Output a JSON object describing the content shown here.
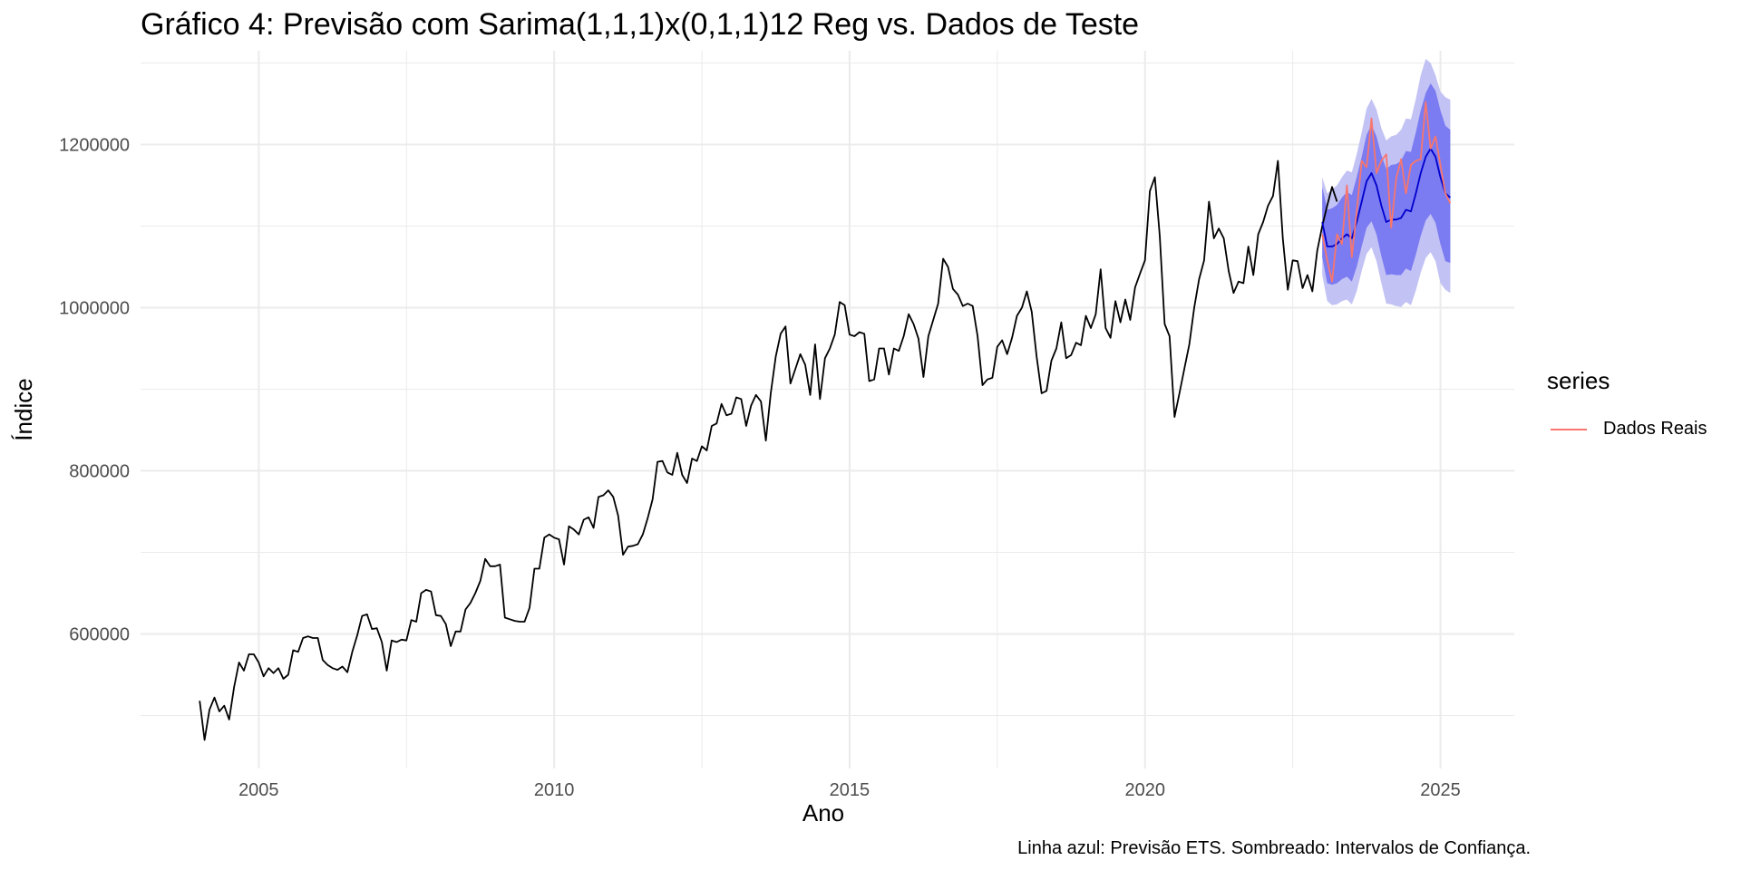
{
  "chart_data": {
    "type": "line",
    "title": "Gráfico 4: Previsão com Sarima(1,1,1)x(0,1,1)12 Reg vs. Dados de Teste",
    "xlabel": "Ano",
    "ylabel": "Índice",
    "caption": "Linha azul: Previsão ETS. Sombreado: Intervalos de Confiança.",
    "legend": {
      "title": "series",
      "placement": "right",
      "entries": [
        "Dados Reais"
      ]
    },
    "xlim": [
      2003.0,
      2026.25
    ],
    "ylim": [
      435000,
      1315000
    ],
    "x_ticks": [
      2005,
      2010,
      2015,
      2020,
      2025
    ],
    "x_tick_labels": [
      "2005",
      "2010",
      "2015",
      "2020",
      "2025"
    ],
    "y_ticks": [
      600000,
      800000,
      1000000,
      1200000
    ],
    "y_tick_labels": [
      "600000",
      "800000",
      "1000000",
      "1200000"
    ],
    "grid": true,
    "colors": {
      "history": "#000000",
      "forecast": "#0000CD",
      "pi80": "#7B7BF2",
      "pi95": "#C2C2F5",
      "test": "#F8766D",
      "grid": "#EBEBEB"
    },
    "series": [
      {
        "role": "history",
        "x_start": 2004.0,
        "step": 0.08333,
        "values": [
          518000,
          470000,
          507000,
          522000,
          505000,
          512000,
          495000,
          535000,
          565000,
          555000,
          575000,
          575000,
          565000,
          548000,
          558000,
          552000,
          558000,
          545000,
          550000,
          580000,
          578000,
          595000,
          597000,
          595000,
          595000,
          568000,
          562000,
          558000,
          556000,
          560000,
          553000,
          578000,
          598000,
          622000,
          624000,
          606000,
          607000,
          590000,
          555000,
          592000,
          590000,
          593000,
          592000,
          617000,
          615000,
          650000,
          654000,
          652000,
          623000,
          622000,
          612000,
          585000,
          603000,
          603000,
          630000,
          638000,
          650000,
          665000,
          692000,
          683000,
          683000,
          685000,
          620000,
          618000,
          616000,
          615000,
          615000,
          632000,
          680000,
          680000,
          718000,
          722000,
          718000,
          716000,
          685000,
          732000,
          728000,
          722000,
          740000,
          743000,
          730000,
          768000,
          770000,
          776000,
          768000,
          745000,
          697000,
          707000,
          708000,
          710000,
          722000,
          742000,
          765000,
          811000,
          812000,
          798000,
          795000,
          822000,
          795000,
          785000,
          815000,
          812000,
          830000,
          825000,
          855000,
          858000,
          882000,
          868000,
          870000,
          890000,
          888000,
          855000,
          880000,
          893000,
          885000,
          837000,
          895000,
          940000,
          968000,
          977000,
          907000,
          925000,
          943000,
          930000,
          893000,
          955000,
          888000,
          938000,
          950000,
          967000,
          1007000,
          1003000,
          967000,
          965000,
          970000,
          968000,
          910000,
          912000,
          950000,
          950000,
          918000,
          950000,
          947000,
          965000,
          992000,
          980000,
          962000,
          915000,
          965000,
          985000,
          1005000,
          1060000,
          1050000,
          1023000,
          1016000,
          1002000,
          1005000,
          1002000,
          965000,
          905000,
          912000,
          914000,
          952000,
          960000,
          943000,
          963000,
          990000,
          1000000,
          1020000,
          995000,
          940000,
          895000,
          898000,
          935000,
          950000,
          982000,
          938000,
          942000,
          957000,
          954000,
          990000,
          975000,
          992000,
          1047000,
          975000,
          963000,
          1008000,
          982000,
          1010000,
          985000,
          1025000,
          1042000,
          1058000,
          1143000,
          1160000,
          1088000,
          980000,
          965000,
          866000,
          895000,
          925000,
          955000,
          1000000,
          1035000,
          1058000,
          1130000,
          1085000,
          1097000,
          1085000,
          1045000,
          1018000,
          1032000,
          1030000,
          1075000,
          1040000,
          1090000,
          1105000,
          1125000,
          1137000,
          1180000,
          1085000,
          1022000,
          1058000,
          1057000,
          1024000,
          1040000,
          1020000,
          1070000,
          1100000,
          1125000,
          1148000,
          1130000
        ]
      },
      {
        "role": "forecast",
        "name": "",
        "x_start": 2023.0,
        "step": 0.08333,
        "values": [
          1105000,
          1075000,
          1075000,
          1078000,
          1085000,
          1090000,
          1085000,
          1105000,
          1130000,
          1155000,
          1165000,
          1150000,
          1125000,
          1105000,
          1108000,
          1108000,
          1110000,
          1120000,
          1118000,
          1140000,
          1165000,
          1185000,
          1195000,
          1185000,
          1160000,
          1140000,
          1135000
        ],
        "pi80_lower": [
          1062000,
          1030000,
          1028000,
          1030000,
          1035000,
          1038000,
          1032000,
          1050000,
          1075000,
          1098000,
          1106000,
          1090000,
          1063000,
          1040000,
          1041000,
          1040000,
          1040000,
          1048000,
          1045000,
          1065000,
          1088000,
          1107000,
          1115000,
          1104000,
          1078000,
          1057000,
          1055000
        ],
        "pi80_upper": [
          1148000,
          1120000,
          1122000,
          1126000,
          1135000,
          1142000,
          1138000,
          1160000,
          1185000,
          1212000,
          1224000,
          1210000,
          1187000,
          1170000,
          1175000,
          1176000,
          1180000,
          1192000,
          1191000,
          1215000,
          1242000,
          1263000,
          1275000,
          1266000,
          1242000,
          1223000,
          1218000
        ],
        "pi95_lower": [
          1040000,
          1008000,
          1003000,
          1004000,
          1008000,
          1010000,
          1004000,
          1020000,
          1045000,
          1066000,
          1074000,
          1057000,
          1030000,
          1005000,
          1004000,
          1002000,
          1001000,
          1007000,
          1003000,
          1021000,
          1043000,
          1061000,
          1068000,
          1057000,
          1030000,
          1022000,
          1018000
        ],
        "pi95_upper": [
          1160000,
          1140000,
          1145000,
          1150000,
          1160000,
          1168000,
          1166000,
          1188000,
          1215000,
          1244000,
          1256000,
          1243000,
          1220000,
          1205000,
          1210000,
          1212000,
          1218000,
          1232000,
          1231000,
          1256000,
          1285000,
          1305000,
          1300000,
          1285000,
          1265000,
          1258000,
          1255000
        ]
      },
      {
        "role": "test",
        "name": "Dados Reais",
        "x_start": 2023.0,
        "step": 0.08333,
        "values": [
          1090000,
          1058000,
          1032000,
          1090000,
          1078000,
          1150000,
          1062000,
          1118000,
          1180000,
          1172000,
          1232000,
          1165000,
          1180000,
          1188000,
          1098000,
          1158000,
          1182000,
          1140000,
          1175000,
          1180000,
          1182000,
          1252000,
          1195000,
          1210000,
          1175000,
          1140000,
          1128000
        ]
      }
    ]
  }
}
